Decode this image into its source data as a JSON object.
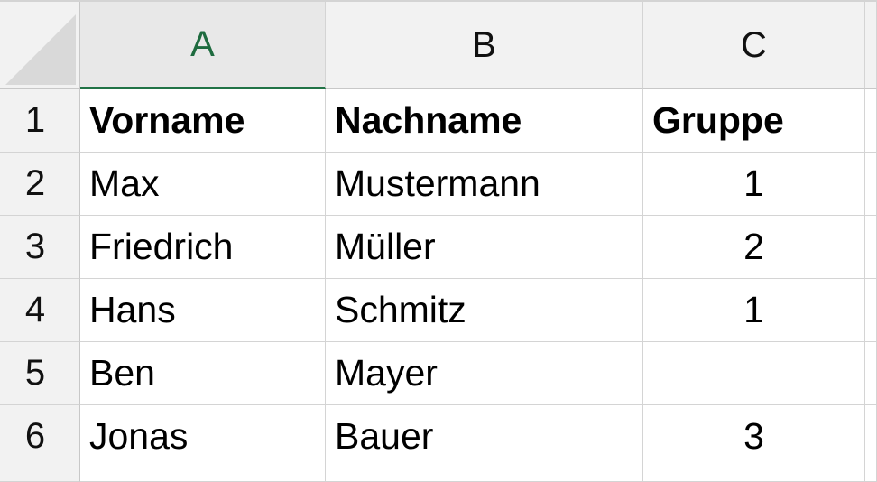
{
  "columns": [
    "A",
    "B",
    "C"
  ],
  "selected_column": "A",
  "rows": [
    {
      "num": "1",
      "cells": [
        "Vorname",
        "Nachname",
        "Gruppe"
      ]
    },
    {
      "num": "2",
      "cells": [
        "Max",
        "Mustermann",
        "1"
      ]
    },
    {
      "num": "3",
      "cells": [
        "Friedrich",
        "Müller",
        "2"
      ]
    },
    {
      "num": "4",
      "cells": [
        "Hans",
        "Schmitz",
        "1"
      ]
    },
    {
      "num": "5",
      "cells": [
        "Ben",
        "Mayer",
        ""
      ]
    },
    {
      "num": "6",
      "cells": [
        "Jonas",
        "Bauer",
        "3"
      ]
    }
  ],
  "colors": {
    "selected_header_text": "#1e6b3f",
    "selected_header_border": "#217346",
    "header_background": "#f2f2f2",
    "gridline": "#d4d4d4"
  }
}
